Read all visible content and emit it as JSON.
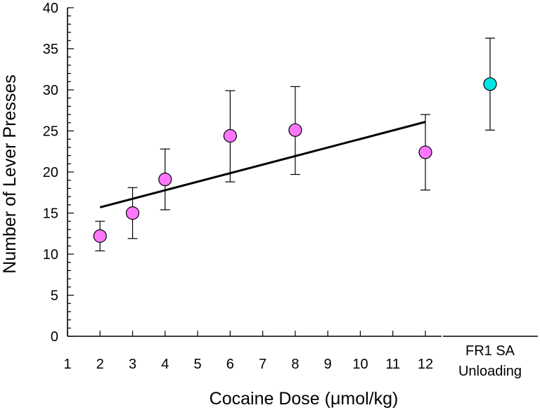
{
  "chart_data": {
    "type": "scatter",
    "xlabel": "Cocaine Dose (μmol/kg)",
    "ylabel": "Number of Lever Presses",
    "ylim": [
      0,
      40
    ],
    "xlim": [
      1,
      12
    ],
    "y_ticks": [
      "0",
      "5",
      "10",
      "15",
      "20",
      "25",
      "30",
      "35",
      "40"
    ],
    "x_ticks": [
      "1",
      "2",
      "3",
      "4",
      "5",
      "6",
      "7",
      "8",
      "9",
      "10",
      "11",
      "12"
    ],
    "grid": false,
    "series": [
      {
        "color": "#ff77ff",
        "points": [
          {
            "x": 2,
            "y": 12.2,
            "err_low": 10.4,
            "err_high": 14.0
          },
          {
            "x": 3,
            "y": 15.0,
            "err_low": 11.9,
            "err_high": 18.1
          },
          {
            "x": 4,
            "y": 19.1,
            "err_low": 15.4,
            "err_high": 22.8
          },
          {
            "x": 6,
            "y": 24.4,
            "err_low": 18.8,
            "err_high": 29.9
          },
          {
            "x": 8,
            "y": 25.1,
            "err_low": 19.7,
            "err_high": 30.4
          },
          {
            "x": 12,
            "y": 22.4,
            "err_low": 17.8,
            "err_high": 27.0
          }
        ]
      }
    ],
    "fit_line": {
      "x": [
        2,
        12
      ],
      "y": [
        15.7,
        26.1
      ]
    },
    "extra_point": {
      "label_lines": [
        "FR1 SA",
        "Unloading"
      ],
      "y": 30.7,
      "err_low": 25.1,
      "err_high": 36.3,
      "color": "#00e6e6"
    }
  }
}
